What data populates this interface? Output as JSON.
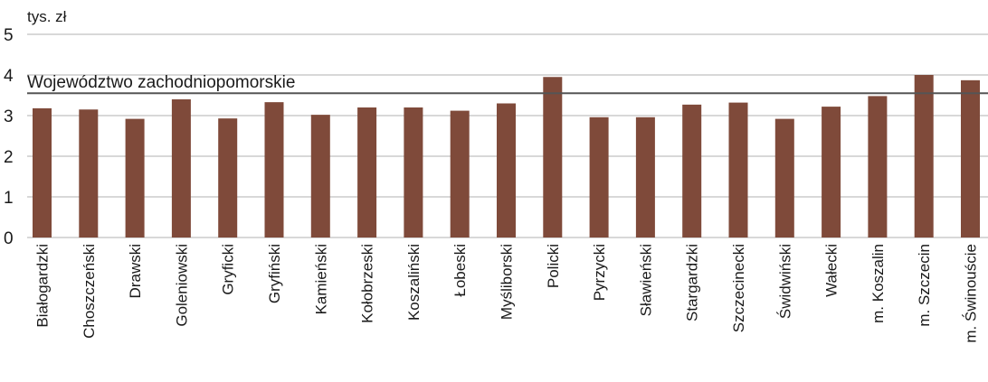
{
  "chart_data": {
    "type": "bar",
    "unit_label": "tys. zł",
    "categories": [
      "Białogardzki",
      "Choszczeński",
      "Drawski",
      "Goleniowski",
      "Gryficki",
      "Gryfiński",
      "Kamieński",
      "Kołobrzeski",
      "Koszaliński",
      "Łobeski",
      "Myśliborski",
      "Policki",
      "Pyrzycki",
      "Sławieński",
      "Stargardzki",
      "Szczecinecki",
      "Świdwiński",
      "Wałecki",
      "m. Koszalin",
      "m. Szczecin",
      "m. Świnouście"
    ],
    "values": [
      3.18,
      3.15,
      2.92,
      3.4,
      2.93,
      3.33,
      3.02,
      3.2,
      3.2,
      3.12,
      3.3,
      3.95,
      2.96,
      2.96,
      3.27,
      3.32,
      2.92,
      3.22,
      3.48,
      4.0,
      3.87
    ],
    "reference_line": {
      "label": "Województwo zachodniopomorskie",
      "value": 3.55
    },
    "yticks": [
      "0",
      "1",
      "2",
      "3",
      "4",
      "5"
    ],
    "ylim": [
      0,
      5
    ],
    "bar_color": "#7f4a3a",
    "grid_color": "#b0b0b0",
    "reference_color": "#555555"
  }
}
